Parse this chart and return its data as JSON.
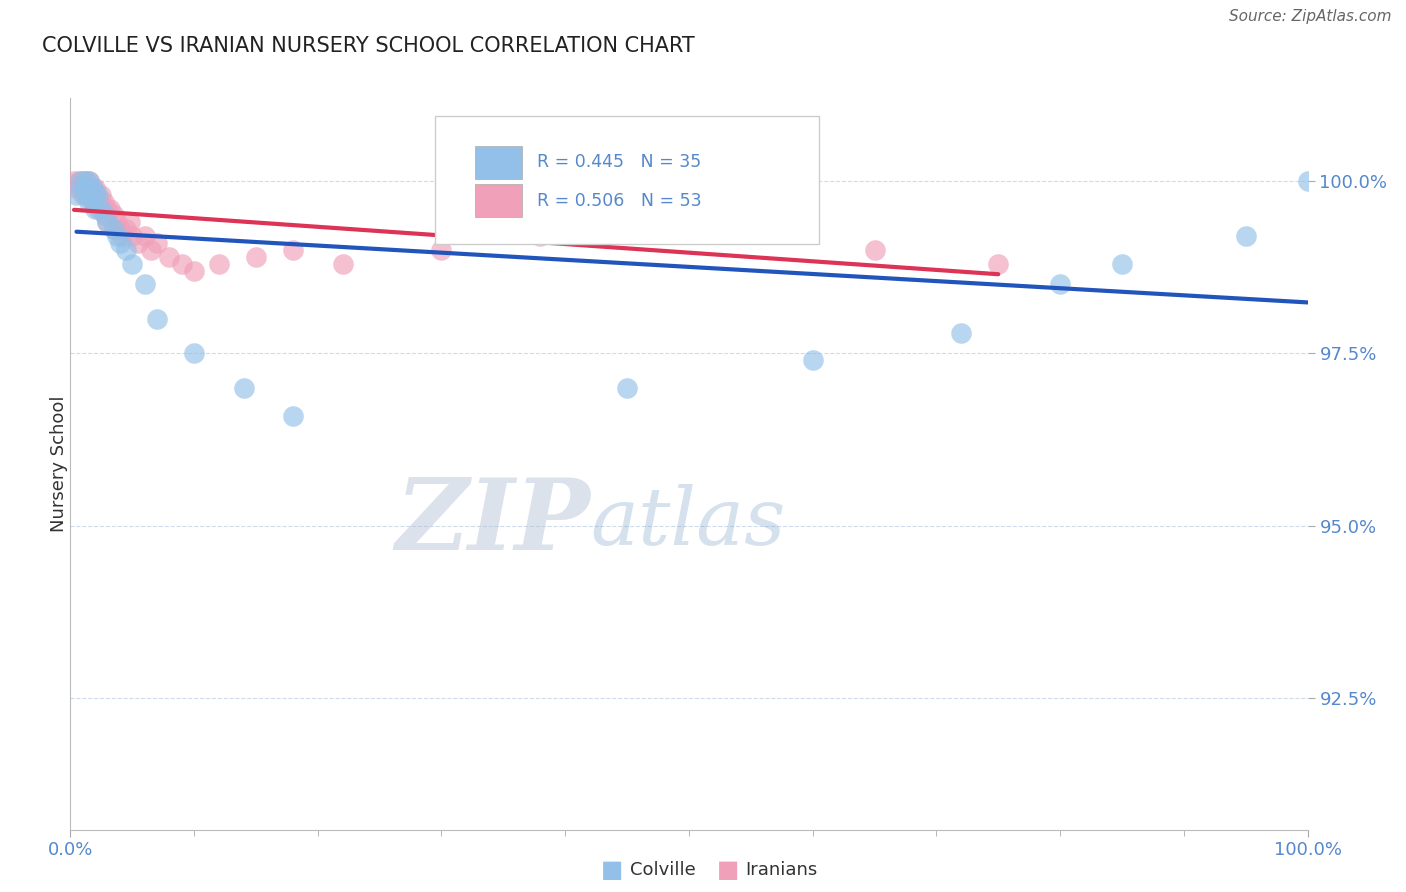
{
  "title": "COLVILLE VS IRANIAN NURSERY SCHOOL CORRELATION CHART",
  "source": "Source: ZipAtlas.com",
  "ylabel": "Nursery School",
  "xlim": [
    0.0,
    1.0
  ],
  "ylim": [
    0.906,
    1.012
  ],
  "yticks": [
    0.925,
    0.95,
    0.975,
    1.0
  ],
  "ytick_labels": [
    "92.5%",
    "95.0%",
    "97.5%",
    "100.0%"
  ],
  "blue_color": "#92C0E8",
  "pink_color": "#F0A0B8",
  "blue_line_color": "#2255BB",
  "pink_line_color": "#DD3355",
  "label_color": "#5588CC",
  "colville_x": [
    0.005,
    0.008,
    0.01,
    0.012,
    0.012,
    0.013,
    0.014,
    0.015,
    0.015,
    0.016,
    0.018,
    0.018,
    0.02,
    0.02,
    0.022,
    0.025,
    0.028,
    0.03,
    0.035,
    0.038,
    0.04,
    0.045,
    0.05,
    0.06,
    0.07,
    0.1,
    0.14,
    0.18,
    0.45,
    0.6,
    0.72,
    0.8,
    0.85,
    0.95,
    1.0
  ],
  "colville_y": [
    0.998,
    1.0,
    0.999,
    0.998,
    1.0,
    0.999,
    0.998,
    1.0,
    0.997,
    0.999,
    0.997,
    0.999,
    0.998,
    0.996,
    0.998,
    0.996,
    0.995,
    0.994,
    0.993,
    0.992,
    0.991,
    0.99,
    0.988,
    0.985,
    0.98,
    0.975,
    0.97,
    0.966,
    0.97,
    0.974,
    0.978,
    0.985,
    0.988,
    0.992,
    1.0
  ],
  "iranians_x": [
    0.003,
    0.005,
    0.007,
    0.008,
    0.01,
    0.01,
    0.012,
    0.013,
    0.014,
    0.015,
    0.015,
    0.016,
    0.017,
    0.018,
    0.018,
    0.019,
    0.02,
    0.02,
    0.021,
    0.022,
    0.023,
    0.025,
    0.025,
    0.027,
    0.028,
    0.03,
    0.03,
    0.032,
    0.035,
    0.035,
    0.038,
    0.04,
    0.042,
    0.045,
    0.048,
    0.05,
    0.055,
    0.06,
    0.065,
    0.07,
    0.08,
    0.09,
    0.1,
    0.12,
    0.15,
    0.18,
    0.22,
    0.3,
    0.38,
    0.47,
    0.55,
    0.65,
    0.75
  ],
  "iranians_y": [
    1.0,
    0.999,
    1.0,
    0.999,
    1.0,
    0.998,
    0.999,
    1.0,
    0.998,
    1.0,
    0.998,
    0.999,
    0.998,
    0.999,
    0.997,
    0.998,
    0.997,
    0.999,
    0.998,
    0.996,
    0.997,
    0.998,
    0.996,
    0.997,
    0.995,
    0.996,
    0.994,
    0.996,
    0.995,
    0.993,
    0.994,
    0.993,
    0.992,
    0.993,
    0.994,
    0.992,
    0.991,
    0.992,
    0.99,
    0.991,
    0.989,
    0.988,
    0.987,
    0.988,
    0.989,
    0.99,
    0.988,
    0.99,
    0.992,
    0.993,
    0.993,
    0.99,
    0.988
  ]
}
